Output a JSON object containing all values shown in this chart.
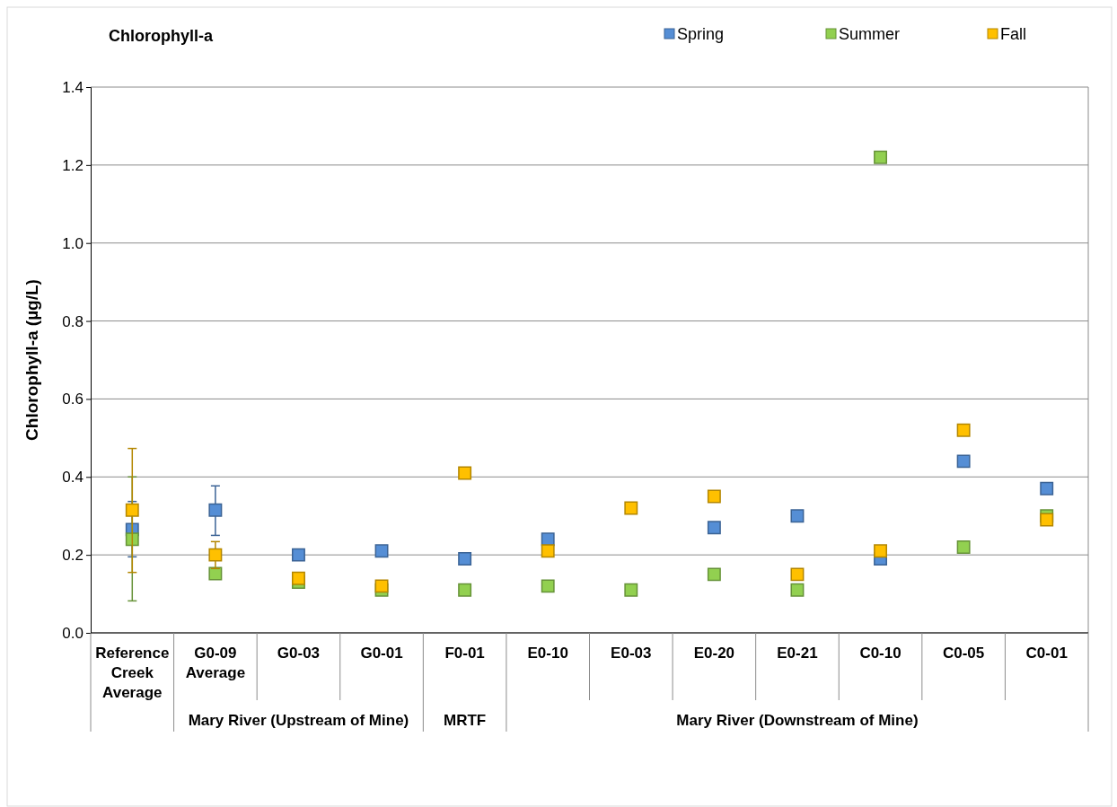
{
  "chart_data": {
    "type": "scatter",
    "title": "Chlorophyll-a",
    "ylabel": "Chlorophyll-a (µg/L)",
    "categories": [
      "Reference Creek Average",
      "G0-09 Average",
      "G0-03",
      "G0-01",
      "F0-01",
      "E0-10",
      "E0-03",
      "E0-20",
      "E0-21",
      "C0-10",
      "C0-05",
      "C0-01"
    ],
    "series": [
      {
        "name": "Spring",
        "color": "#558ed5",
        "values": [
          0.265,
          0.315,
          0.2,
          0.21,
          0.19,
          0.24,
          null,
          0.27,
          0.3,
          0.19,
          0.44,
          0.37
        ],
        "errors": [
          [
            0.195,
            0.337
          ],
          [
            0.25,
            0.377
          ],
          null,
          null,
          null,
          null,
          null,
          null,
          null,
          null,
          null,
          null
        ]
      },
      {
        "name": "Summer",
        "color": "#92d050",
        "values": [
          0.24,
          0.152,
          0.13,
          0.11,
          0.11,
          0.12,
          0.11,
          0.15,
          0.11,
          1.22,
          0.22,
          0.3
        ],
        "errors": [
          [
            0.082,
            0.4
          ],
          null,
          null,
          null,
          null,
          null,
          null,
          null,
          null,
          null,
          null,
          null
        ]
      },
      {
        "name": "Fall",
        "color": "#ffc000",
        "values": [
          0.315,
          0.2,
          0.14,
          0.12,
          0.41,
          0.21,
          0.32,
          0.35,
          0.15,
          0.21,
          0.52,
          0.29
        ],
        "errors": [
          [
            0.155,
            0.473
          ],
          [
            0.165,
            0.234
          ],
          null,
          null,
          null,
          null,
          null,
          null,
          null,
          null,
          null,
          null
        ]
      }
    ],
    "ylim": [
      0,
      1.4
    ],
    "yticks": [
      {
        "value": 0,
        "label": "0.0"
      },
      {
        "value": 0.2,
        "label": "0.2"
      },
      {
        "value": 0.4,
        "label": "0.4"
      },
      {
        "value": 0.6,
        "label": "0.6"
      },
      {
        "value": 0.8,
        "label": "0.8"
      },
      {
        "value": 1,
        "label": "1.0"
      },
      {
        "value": 1.2,
        "label": "1.2"
      },
      {
        "value": 1.4,
        "label": "1.4"
      }
    ],
    "grid": "y",
    "legend": "top right",
    "marker": "square",
    "annotations": [
      "Mary River (Upstream of Mine)",
      "MRTF",
      "Mary River (Downstream of Mine)"
    ]
  }
}
